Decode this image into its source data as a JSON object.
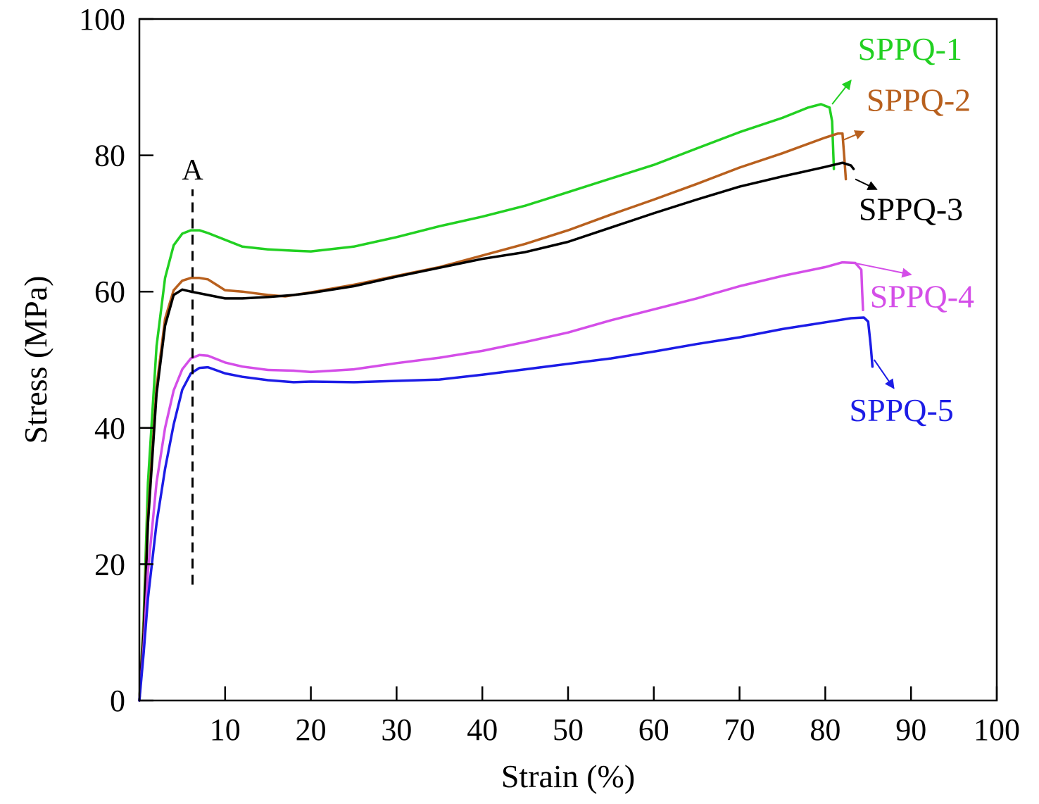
{
  "chart_data": {
    "type": "line",
    "title": "",
    "xlabel": "Strain (%)",
    "ylabel": "Stress (MPa)",
    "xlim": [
      0,
      100
    ],
    "ylim": [
      0,
      100
    ],
    "xticks": [
      10,
      20,
      30,
      40,
      50,
      60,
      70,
      80,
      90,
      100
    ],
    "yticks": [
      0,
      20,
      40,
      60,
      80,
      100
    ],
    "grid": false,
    "legend": "direct labels with arrows at curve ends",
    "annotations": [
      {
        "label": "A",
        "type": "dashed vertical line",
        "x": 6.2,
        "y_from": 17,
        "y_to": 75
      }
    ],
    "series": [
      {
        "name": "SPPQ-1",
        "color": "#22d022",
        "points": [
          [
            0,
            0
          ],
          [
            0.5,
            12
          ],
          [
            1,
            32
          ],
          [
            2,
            52
          ],
          [
            3,
            62
          ],
          [
            4,
            66.8
          ],
          [
            5,
            68.5
          ],
          [
            6,
            69
          ],
          [
            7,
            69
          ],
          [
            8,
            68.6
          ],
          [
            10,
            67.6
          ],
          [
            12,
            66.6
          ],
          [
            15,
            66.2
          ],
          [
            18,
            66
          ],
          [
            20,
            65.9
          ],
          [
            25,
            66.6
          ],
          [
            30,
            68
          ],
          [
            35,
            69.6
          ],
          [
            40,
            71
          ],
          [
            45,
            72.6
          ],
          [
            50,
            74.6
          ],
          [
            55,
            76.6
          ],
          [
            60,
            78.6
          ],
          [
            65,
            81
          ],
          [
            70,
            83.4
          ],
          [
            75,
            85.5
          ],
          [
            78,
            87
          ],
          [
            79.5,
            87.5
          ],
          [
            80.5,
            87
          ],
          [
            80.8,
            85
          ],
          [
            81,
            78
          ]
        ],
        "arrow_to": [
          83,
          91
        ]
      },
      {
        "name": "SPPQ-2",
        "color": "#b8601e",
        "points": [
          [
            0,
            0
          ],
          [
            0.5,
            11
          ],
          [
            1,
            27
          ],
          [
            2,
            46
          ],
          [
            3,
            56
          ],
          [
            4,
            60.2
          ],
          [
            5,
            61.6
          ],
          [
            6,
            62
          ],
          [
            7,
            62
          ],
          [
            8,
            61.8
          ],
          [
            9,
            61
          ],
          [
            10,
            60.2
          ],
          [
            12,
            60
          ],
          [
            15,
            59.5
          ],
          [
            17,
            59.3
          ],
          [
            20,
            59.9
          ],
          [
            25,
            61
          ],
          [
            30,
            62.3
          ],
          [
            35,
            63.6
          ],
          [
            40,
            65.3
          ],
          [
            45,
            67
          ],
          [
            50,
            69
          ],
          [
            55,
            71.3
          ],
          [
            60,
            73.5
          ],
          [
            65,
            75.8
          ],
          [
            70,
            78.2
          ],
          [
            75,
            80.3
          ],
          [
            80,
            82.6
          ],
          [
            81.5,
            83.2
          ],
          [
            82,
            83.2
          ],
          [
            82.2,
            80
          ],
          [
            82.4,
            76.5
          ]
        ],
        "arrow_to": [
          84.5,
          83.5
        ]
      },
      {
        "name": "SPPQ-3",
        "color": "#000000",
        "points": [
          [
            0,
            0
          ],
          [
            0.5,
            10
          ],
          [
            1,
            26
          ],
          [
            2,
            45
          ],
          [
            3,
            55
          ],
          [
            4,
            59.5
          ],
          [
            5,
            60.3
          ],
          [
            6,
            60
          ],
          [
            8,
            59.5
          ],
          [
            10,
            59
          ],
          [
            12,
            59
          ],
          [
            15,
            59.2
          ],
          [
            18,
            59.5
          ],
          [
            20,
            59.8
          ],
          [
            25,
            60.8
          ],
          [
            30,
            62.2
          ],
          [
            35,
            63.5
          ],
          [
            40,
            64.8
          ],
          [
            45,
            65.8
          ],
          [
            50,
            67.3
          ],
          [
            55,
            69.4
          ],
          [
            60,
            71.5
          ],
          [
            65,
            73.5
          ],
          [
            70,
            75.4
          ],
          [
            75,
            76.9
          ],
          [
            80,
            78.3
          ],
          [
            82,
            78.9
          ],
          [
            83,
            78.5
          ],
          [
            83.3,
            78
          ]
        ],
        "arrow_to": [
          86,
          75
        ]
      },
      {
        "name": "SPPQ-4",
        "color": "#d44ee8",
        "points": [
          [
            0,
            0
          ],
          [
            0.5,
            8
          ],
          [
            1,
            19
          ],
          [
            2,
            32
          ],
          [
            3,
            40
          ],
          [
            4,
            45.5
          ],
          [
            5,
            48.6
          ],
          [
            6,
            50.2
          ],
          [
            7,
            50.7
          ],
          [
            8,
            50.6
          ],
          [
            10,
            49.6
          ],
          [
            12,
            49
          ],
          [
            15,
            48.5
          ],
          [
            18,
            48.4
          ],
          [
            20,
            48.2
          ],
          [
            25,
            48.6
          ],
          [
            30,
            49.5
          ],
          [
            35,
            50.3
          ],
          [
            40,
            51.3
          ],
          [
            45,
            52.6
          ],
          [
            50,
            54
          ],
          [
            55,
            55.8
          ],
          [
            60,
            57.4
          ],
          [
            65,
            59
          ],
          [
            70,
            60.8
          ],
          [
            75,
            62.3
          ],
          [
            80,
            63.6
          ],
          [
            82,
            64.3
          ],
          [
            83.5,
            64.2
          ],
          [
            84.2,
            63.2
          ],
          [
            84.3,
            60
          ],
          [
            84.4,
            57.3
          ]
        ],
        "arrow_to": [
          90,
          62.5
        ]
      },
      {
        "name": "SPPQ-5",
        "color": "#1c1ce6",
        "points": [
          [
            0,
            0
          ],
          [
            0.5,
            7
          ],
          [
            1,
            15
          ],
          [
            2,
            26
          ],
          [
            3,
            34
          ],
          [
            4,
            40.5
          ],
          [
            5,
            45.6
          ],
          [
            6,
            48
          ],
          [
            7,
            48.8
          ],
          [
            8,
            48.9
          ],
          [
            10,
            48
          ],
          [
            12,
            47.5
          ],
          [
            15,
            47
          ],
          [
            18,
            46.7
          ],
          [
            20,
            46.8
          ],
          [
            25,
            46.7
          ],
          [
            30,
            46.9
          ],
          [
            35,
            47.1
          ],
          [
            40,
            47.8
          ],
          [
            45,
            48.6
          ],
          [
            50,
            49.4
          ],
          [
            55,
            50.2
          ],
          [
            60,
            51.2
          ],
          [
            65,
            52.3
          ],
          [
            70,
            53.3
          ],
          [
            75,
            54.5
          ],
          [
            80,
            55.5
          ],
          [
            83,
            56.1
          ],
          [
            84.5,
            56.2
          ],
          [
            85,
            55.6
          ],
          [
            85.3,
            52
          ],
          [
            85.5,
            49
          ]
        ],
        "arrow_to": [
          88,
          45.8
        ]
      }
    ],
    "series_labels": [
      {
        "text": "SPPQ-1",
        "color": "#22d022",
        "x": 83.8,
        "y": 94
      },
      {
        "text": "SPPQ-2",
        "color": "#b8601e",
        "x": 84.8,
        "y": 86.5
      },
      {
        "text": "SPPQ-3",
        "color": "#000000",
        "x": 83.9,
        "y": 70.5
      },
      {
        "text": "SPPQ-4",
        "color": "#d44ee8",
        "x": 85.2,
        "y": 57.7
      },
      {
        "text": "SPPQ-5",
        "color": "#1c1ce6",
        "x": 82.8,
        "y": 41
      }
    ]
  }
}
